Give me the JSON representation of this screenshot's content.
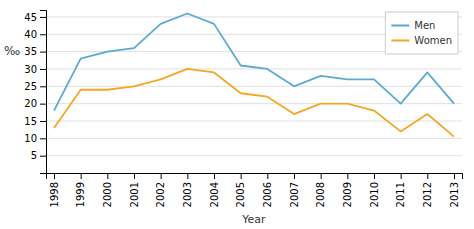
{
  "chart_data": {
    "type": "line",
    "xlabel": "Year",
    "ylabel": "‰",
    "x": [
      1998,
      1999,
      2000,
      2001,
      2002,
      2003,
      2004,
      2005,
      2006,
      2007,
      2008,
      2009,
      2010,
      2011,
      2012,
      2013
    ],
    "series": [
      {
        "name": "Men",
        "color": "#5BAAD4",
        "values": [
          18,
          33,
          35,
          36,
          43,
          46,
          43,
          31,
          30,
          25,
          28,
          27,
          27,
          20,
          29,
          20
        ]
      },
      {
        "name": "Women",
        "color": "#F5A623",
        "values": [
          13,
          24,
          24,
          25,
          27,
          30,
          29,
          23,
          22,
          17,
          20,
          20,
          18,
          12,
          17,
          10.5
        ]
      }
    ],
    "xlim": [
      1997.7,
      2013.3
    ],
    "xticks": [
      1998,
      1999,
      2000,
      2001,
      2002,
      2003,
      2004,
      2005,
      2006,
      2007,
      2008,
      2009,
      2010,
      2011,
      2012,
      2013
    ],
    "ylim": [
      0,
      47
    ],
    "yticks": [
      5,
      10,
      15,
      20,
      25,
      30,
      35,
      40,
      45
    ],
    "grid": true,
    "legend": "upper right"
  }
}
